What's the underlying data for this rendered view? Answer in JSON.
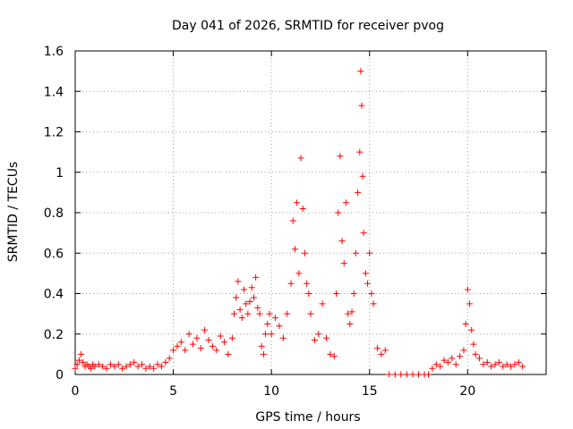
{
  "chart_data": {
    "type": "scatter",
    "title": "Day 041 of 2026, SRMTID for receiver pvog",
    "xlabel": "GPS time / hours",
    "ylabel": "SRMTID / TECUs",
    "xlim": [
      0,
      24
    ],
    "ylim": [
      0,
      1.6
    ],
    "xticks": [
      0,
      5,
      10,
      15,
      20
    ],
    "yticks": [
      0,
      0.2,
      0.4,
      0.6,
      0.8,
      1,
      1.2,
      1.4,
      1.6
    ],
    "ytick_labels": [
      "0",
      "0.2",
      "0.4",
      "0.6",
      "0.8",
      "1",
      "1.2",
      "1.4",
      "1.6"
    ],
    "grid": true,
    "marker": "+",
    "color": "#ff0000",
    "series": [
      {
        "name": "SRMTID",
        "x": [
          0.0,
          0.1,
          0.2,
          0.3,
          0.4,
          0.5,
          0.6,
          0.7,
          0.8,
          0.9,
          1.0,
          1.2,
          1.4,
          1.6,
          1.8,
          2.0,
          2.2,
          2.4,
          2.6,
          2.8,
          3.0,
          3.2,
          3.4,
          3.6,
          3.8,
          4.0,
          4.2,
          4.4,
          4.6,
          4.8,
          5.0,
          5.2,
          5.4,
          5.6,
          5.8,
          6.0,
          6.2,
          6.4,
          6.6,
          6.8,
          7.0,
          7.2,
          7.4,
          7.6,
          7.8,
          8.0,
          8.1,
          8.2,
          8.3,
          8.4,
          8.5,
          8.6,
          8.7,
          8.8,
          8.9,
          9.0,
          9.1,
          9.2,
          9.3,
          9.4,
          9.5,
          9.6,
          9.7,
          9.8,
          9.9,
          10.0,
          10.2,
          10.4,
          10.6,
          10.8,
          11.0,
          11.1,
          11.2,
          11.3,
          11.4,
          11.5,
          11.6,
          11.7,
          11.8,
          11.9,
          12.0,
          12.2,
          12.4,
          12.6,
          12.8,
          13.0,
          13.2,
          13.3,
          13.4,
          13.5,
          13.6,
          13.7,
          13.8,
          13.9,
          14.0,
          14.1,
          14.2,
          14.3,
          14.4,
          14.5,
          14.55,
          14.6,
          14.65,
          14.7,
          14.8,
          14.9,
          15.0,
          15.1,
          15.2,
          15.4,
          15.6,
          15.8,
          16.0,
          16.3,
          16.6,
          16.9,
          17.2,
          17.5,
          17.8,
          18.0,
          18.2,
          18.4,
          18.6,
          18.8,
          19.0,
          19.2,
          19.4,
          19.6,
          19.8,
          19.9,
          20.0,
          20.1,
          20.2,
          20.3,
          20.4,
          20.6,
          20.8,
          21.0,
          21.2,
          21.4,
          21.6,
          21.8,
          22.0,
          22.2,
          22.4,
          22.6,
          22.8
        ],
        "y": [
          0.03,
          0.05,
          0.07,
          0.1,
          0.06,
          0.04,
          0.05,
          0.04,
          0.03,
          0.05,
          0.04,
          0.05,
          0.04,
          0.03,
          0.05,
          0.04,
          0.05,
          0.03,
          0.04,
          0.05,
          0.06,
          0.04,
          0.05,
          0.03,
          0.04,
          0.03,
          0.05,
          0.04,
          0.06,
          0.08,
          0.12,
          0.14,
          0.16,
          0.12,
          0.2,
          0.15,
          0.18,
          0.13,
          0.22,
          0.17,
          0.14,
          0.12,
          0.19,
          0.16,
          0.1,
          0.18,
          0.3,
          0.38,
          0.46,
          0.32,
          0.28,
          0.42,
          0.35,
          0.3,
          0.36,
          0.43,
          0.38,
          0.48,
          0.33,
          0.3,
          0.14,
          0.1,
          0.2,
          0.25,
          0.3,
          0.2,
          0.28,
          0.24,
          0.18,
          0.3,
          0.45,
          0.76,
          0.62,
          0.85,
          0.5,
          1.07,
          0.82,
          0.6,
          0.45,
          0.4,
          0.3,
          0.17,
          0.2,
          0.35,
          0.18,
          0.1,
          0.09,
          0.4,
          0.8,
          1.08,
          0.66,
          0.55,
          0.85,
          0.3,
          0.25,
          0.31,
          0.4,
          0.6,
          0.9,
          1.1,
          1.5,
          1.33,
          0.98,
          0.7,
          0.5,
          0.45,
          0.6,
          0.4,
          0.35,
          0.13,
          0.1,
          0.12,
          0.0,
          0.0,
          0.0,
          0.0,
          0.0,
          0.0,
          0.0,
          0.0,
          0.03,
          0.05,
          0.04,
          0.07,
          0.06,
          0.08,
          0.05,
          0.09,
          0.12,
          0.25,
          0.42,
          0.35,
          0.22,
          0.15,
          0.1,
          0.08,
          0.05,
          0.06,
          0.04,
          0.05,
          0.06,
          0.04,
          0.05,
          0.04,
          0.05,
          0.06,
          0.04
        ]
      }
    ]
  }
}
